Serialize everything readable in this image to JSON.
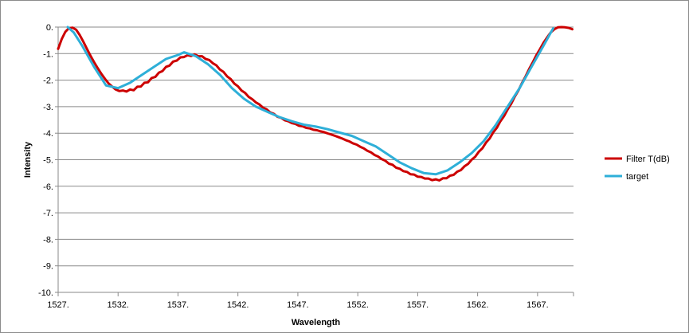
{
  "chart_data": {
    "type": "line",
    "title": "",
    "xlabel": "Wavelength",
    "ylabel": "Intensity",
    "xlim": [
      1527,
      1570
    ],
    "ylim": [
      -10,
      0
    ],
    "x_ticks": [
      1527,
      1532,
      1537,
      1542,
      1547,
      1552,
      1557,
      1562,
      1567
    ],
    "x_tick_labels": [
      "1527.",
      "1532.",
      "1537.",
      "1542.",
      "1547.",
      "1552.",
      "1557.",
      "1562.",
      "1567."
    ],
    "y_ticks": [
      0,
      -1,
      -2,
      -3,
      -4,
      -5,
      -6,
      -7,
      -8,
      -9,
      -10
    ],
    "y_tick_labels": [
      "0.",
      "-1.",
      "-2.",
      "-3.",
      "-4.",
      "-5.",
      "-6.",
      "-7.",
      "-8.",
      "-9.",
      "-10."
    ],
    "grid": "horizontal",
    "legend_position": "right",
    "series": [
      {
        "name": "Filter T(dB)",
        "color": "#cc0000",
        "x": [
          1527.0,
          1527.3,
          1527.6,
          1527.9,
          1528.2,
          1528.5,
          1528.8,
          1529.1,
          1529.4,
          1529.7,
          1530.0,
          1530.3,
          1530.6,
          1530.9,
          1531.2,
          1531.5,
          1531.8,
          1532.1,
          1532.4,
          1532.7,
          1533.0,
          1533.3,
          1533.6,
          1533.9,
          1534.2,
          1534.5,
          1534.8,
          1535.1,
          1535.4,
          1535.7,
          1536.0,
          1536.3,
          1536.6,
          1536.9,
          1537.2,
          1537.5,
          1537.8,
          1538.1,
          1538.4,
          1538.7,
          1539.0,
          1539.3,
          1539.6,
          1539.9,
          1540.2,
          1540.5,
          1540.8,
          1541.1,
          1541.4,
          1541.7,
          1542.0,
          1542.3,
          1542.6,
          1542.9,
          1543.2,
          1543.5,
          1543.8,
          1544.1,
          1544.4,
          1544.7,
          1545.0,
          1545.3,
          1545.6,
          1545.9,
          1546.2,
          1546.5,
          1546.8,
          1547.1,
          1547.4,
          1547.7,
          1548.0,
          1548.3,
          1548.6,
          1548.9,
          1549.2,
          1549.5,
          1549.8,
          1550.1,
          1550.4,
          1550.7,
          1551.0,
          1551.3,
          1551.6,
          1551.9,
          1552.2,
          1552.5,
          1552.8,
          1553.1,
          1553.4,
          1553.7,
          1554.0,
          1554.3,
          1554.6,
          1554.9,
          1555.2,
          1555.5,
          1555.8,
          1556.1,
          1556.4,
          1556.7,
          1557.0,
          1557.3,
          1557.6,
          1557.9,
          1558.2,
          1558.5,
          1558.8,
          1559.1,
          1559.4,
          1559.7,
          1560.0,
          1560.3,
          1560.6,
          1560.9,
          1561.2,
          1561.5,
          1561.8,
          1562.1,
          1562.4,
          1562.7,
          1563.0,
          1563.3,
          1563.6,
          1563.9,
          1564.2,
          1564.5,
          1564.8,
          1565.1,
          1565.4,
          1565.7,
          1566.0,
          1566.3,
          1566.6,
          1566.9,
          1567.2,
          1567.5,
          1567.8,
          1568.1,
          1568.4,
          1568.7,
          1569.0,
          1569.3,
          1569.6,
          1569.9
        ],
        "values": [
          -0.82,
          -0.45,
          -0.18,
          -0.04,
          -0.02,
          -0.1,
          -0.3,
          -0.55,
          -0.82,
          -1.08,
          -1.32,
          -1.55,
          -1.76,
          -1.95,
          -2.12,
          -2.24,
          -2.35,
          -2.41,
          -2.39,
          -2.43,
          -2.35,
          -2.38,
          -2.25,
          -2.24,
          -2.1,
          -2.08,
          -1.92,
          -1.88,
          -1.72,
          -1.66,
          -1.5,
          -1.45,
          -1.3,
          -1.26,
          -1.14,
          -1.13,
          -1.06,
          -1.09,
          -1.03,
          -1.1,
          -1.1,
          -1.2,
          -1.24,
          -1.36,
          -1.44,
          -1.6,
          -1.69,
          -1.86,
          -1.96,
          -2.13,
          -2.23,
          -2.39,
          -2.48,
          -2.63,
          -2.72,
          -2.84,
          -2.92,
          -3.04,
          -3.1,
          -3.22,
          -3.27,
          -3.38,
          -3.42,
          -3.51,
          -3.55,
          -3.62,
          -3.65,
          -3.72,
          -3.74,
          -3.8,
          -3.82,
          -3.87,
          -3.89,
          -3.93,
          -3.96,
          -4.01,
          -4.05,
          -4.1,
          -4.15,
          -4.2,
          -4.26,
          -4.31,
          -4.38,
          -4.43,
          -4.51,
          -4.57,
          -4.66,
          -4.72,
          -4.82,
          -4.88,
          -4.98,
          -5.04,
          -5.15,
          -5.19,
          -5.3,
          -5.34,
          -5.43,
          -5.46,
          -5.55,
          -5.56,
          -5.64,
          -5.65,
          -5.71,
          -5.71,
          -5.77,
          -5.74,
          -5.78,
          -5.7,
          -5.7,
          -5.6,
          -5.57,
          -5.45,
          -5.39,
          -5.25,
          -5.16,
          -5.0,
          -4.89,
          -4.7,
          -4.57,
          -4.35,
          -4.2,
          -3.97,
          -3.8,
          -3.55,
          -3.36,
          -3.11,
          -2.89,
          -2.62,
          -2.39,
          -2.11,
          -1.86,
          -1.58,
          -1.33,
          -1.06,
          -0.83,
          -0.59,
          -0.39,
          -0.2,
          -0.08,
          -0.01,
          -0.0,
          -0.01,
          -0.03,
          -0.08
        ]
      },
      {
        "name": "target",
        "color": "#2eafd8",
        "x": [
          1527.8,
          1528.3,
          1529.0,
          1530.0,
          1531.0,
          1532.0,
          1533.0,
          1534.0,
          1535.0,
          1536.0,
          1537.0,
          1537.5,
          1538.5,
          1539.5,
          1540.5,
          1541.5,
          1542.5,
          1543.5,
          1544.5,
          1545.5,
          1546.5,
          1547.5,
          1548.5,
          1549.5,
          1550.5,
          1551.5,
          1552.5,
          1553.5,
          1554.5,
          1555.5,
          1556.5,
          1557.5,
          1558.5,
          1559.5,
          1560.5,
          1561.5,
          1562.5,
          1563.5,
          1564.5,
          1565.5,
          1566.5,
          1567.5,
          1568.3
        ],
        "values": [
          0.0,
          -0.2,
          -0.7,
          -1.5,
          -2.2,
          -2.3,
          -2.1,
          -1.8,
          -1.5,
          -1.2,
          -1.05,
          -0.95,
          -1.1,
          -1.4,
          -1.8,
          -2.3,
          -2.7,
          -3.0,
          -3.2,
          -3.4,
          -3.55,
          -3.68,
          -3.75,
          -3.85,
          -3.98,
          -4.1,
          -4.3,
          -4.5,
          -4.8,
          -5.1,
          -5.32,
          -5.5,
          -5.55,
          -5.4,
          -5.1,
          -4.75,
          -4.3,
          -3.7,
          -3.0,
          -2.3,
          -1.5,
          -0.7,
          -0.05
        ]
      }
    ]
  }
}
